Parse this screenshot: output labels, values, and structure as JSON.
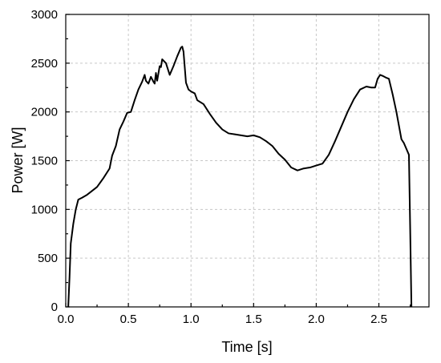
{
  "chart_data": {
    "type": "line",
    "xlabel": "Time [s]",
    "ylabel": "Power [W]",
    "xlim": [
      0.0,
      2.9
    ],
    "ylim": [
      0,
      3000
    ],
    "xticks": [
      0.0,
      0.5,
      1.0,
      1.5,
      2.0,
      2.5
    ],
    "xtick_labels": [
      "0.0",
      "0.5",
      "1.0",
      "1.5",
      "2.0",
      "2.5"
    ],
    "yticks": [
      0,
      500,
      1000,
      1500,
      2000,
      2500,
      3000
    ],
    "ytick_labels": [
      "0",
      "500",
      "1000",
      "1500",
      "2000",
      "2500",
      "3000"
    ],
    "grid": true,
    "series": [
      {
        "color": "#000000",
        "x": [
          0.02,
          0.03,
          0.04,
          0.06,
          0.08,
          0.1,
          0.13,
          0.17,
          0.2,
          0.25,
          0.3,
          0.35,
          0.37,
          0.4,
          0.43,
          0.46,
          0.49,
          0.52,
          0.55,
          0.58,
          0.61,
          0.63,
          0.64,
          0.66,
          0.68,
          0.7,
          0.71,
          0.72,
          0.73,
          0.75,
          0.76,
          0.77,
          0.8,
          0.83,
          0.86,
          0.89,
          0.92,
          0.93,
          0.94,
          0.96,
          0.98,
          1.0,
          1.03,
          1.05,
          1.1,
          1.15,
          1.2,
          1.25,
          1.3,
          1.35,
          1.4,
          1.45,
          1.5,
          1.55,
          1.6,
          1.65,
          1.7,
          1.75,
          1.8,
          1.85,
          1.9,
          1.95,
          2.0,
          2.05,
          2.1,
          2.15,
          2.2,
          2.25,
          2.3,
          2.35,
          2.4,
          2.44,
          2.47,
          2.49,
          2.51,
          2.53,
          2.56,
          2.58,
          2.61,
          2.64,
          2.68,
          2.7,
          2.72,
          2.74,
          2.75,
          2.76
        ],
        "y": [
          0,
          300,
          650,
          850,
          1000,
          1100,
          1120,
          1150,
          1180,
          1230,
          1320,
          1420,
          1550,
          1650,
          1820,
          1900,
          1990,
          2000,
          2120,
          2230,
          2310,
          2380,
          2320,
          2290,
          2360,
          2310,
          2290,
          2400,
          2320,
          2470,
          2460,
          2540,
          2500,
          2380,
          2470,
          2570,
          2660,
          2670,
          2620,
          2300,
          2230,
          2210,
          2190,
          2120,
          2080,
          1980,
          1890,
          1820,
          1780,
          1770,
          1760,
          1750,
          1760,
          1740,
          1700,
          1650,
          1570,
          1510,
          1430,
          1400,
          1420,
          1430,
          1450,
          1470,
          1560,
          1700,
          1850,
          2000,
          2130,
          2230,
          2260,
          2250,
          2250,
          2340,
          2380,
          2370,
          2350,
          2340,
          2180,
          2000,
          1720,
          1680,
          1620,
          1560,
          800,
          0
        ]
      }
    ]
  }
}
